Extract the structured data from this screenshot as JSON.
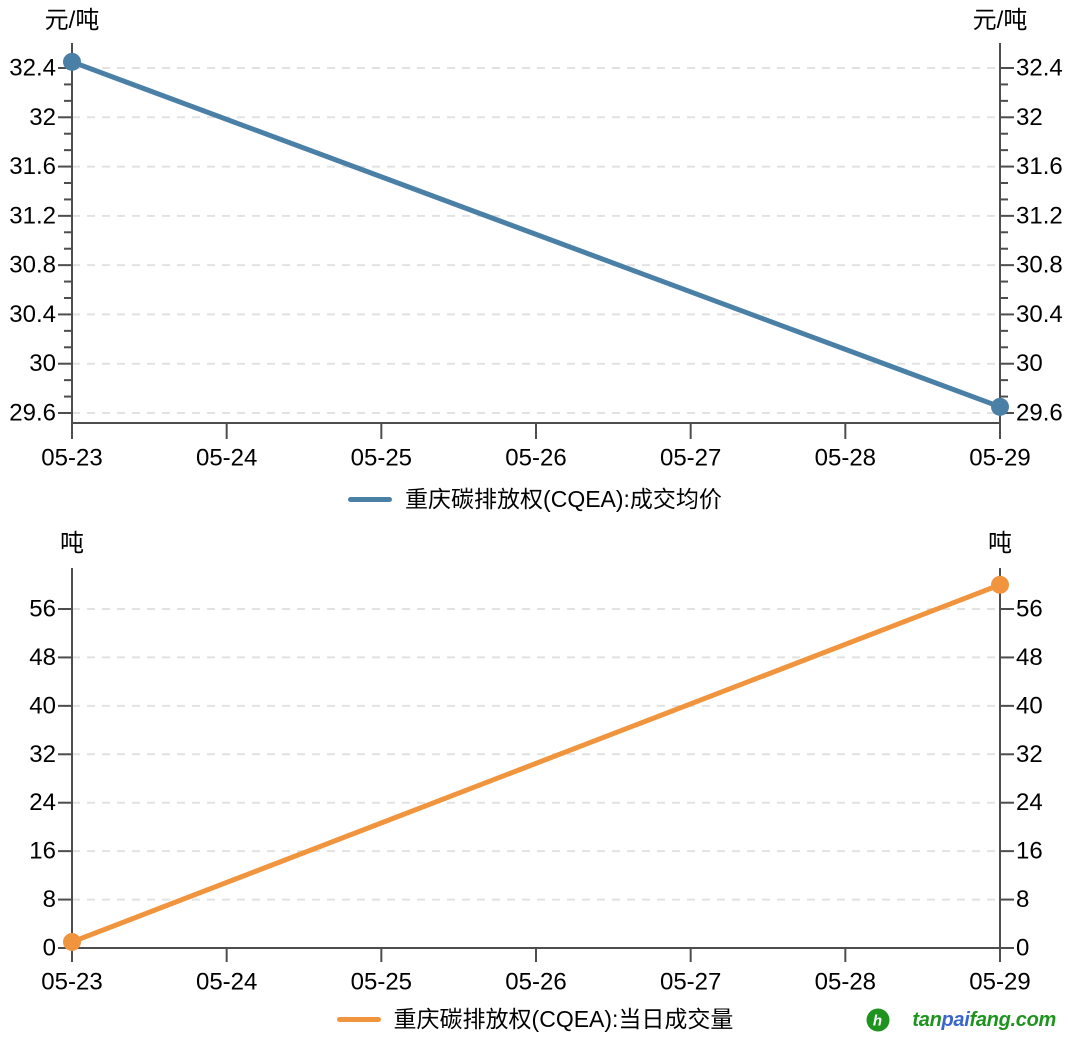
{
  "chart_data": [
    {
      "type": "line",
      "title": "重庆碳排放权(CQEA):成交均价",
      "ylabel": "元/吨",
      "x": [
        "05-23",
        "05-24",
        "05-25",
        "05-26",
        "05-27",
        "05-28",
        "05-29"
      ],
      "series": [
        {
          "name": "重庆碳排放权(CQEA):成交均价",
          "color": "#4A7FA6",
          "values": [
            32.45,
            null,
            null,
            null,
            null,
            null,
            29.65
          ]
        }
      ],
      "ylim": [
        29.6,
        32.4
      ],
      "ytick_labels": [
        "29.6",
        "30",
        "30.4",
        "30.8",
        "31.2",
        "31.6",
        "32",
        "32.4"
      ],
      "minor_ticks_per_interval": 2,
      "grid": true,
      "legend_position": "bottom"
    },
    {
      "type": "line",
      "title": "重庆碳排放权(CQEA):当日成交量",
      "ylabel": "吨",
      "x": [
        "05-23",
        "05-24",
        "05-25",
        "05-26",
        "05-27",
        "05-28",
        "05-29"
      ],
      "series": [
        {
          "name": "重庆碳排放权(CQEA):当日成交量",
          "color": "#F0953E",
          "values": [
            1,
            null,
            null,
            null,
            null,
            null,
            60
          ]
        }
      ],
      "ylim": [
        0,
        56
      ],
      "ytick_labels": [
        "0",
        "8",
        "16",
        "24",
        "32",
        "40",
        "48",
        "56"
      ],
      "minor_ticks_per_interval": 0,
      "grid": true,
      "legend_position": "bottom"
    }
  ],
  "footer": {
    "logo": {
      "part1": "tan",
      "part2": "pai",
      "part3": "fang.com",
      "icon_letter": "h",
      "green": "#1E941E",
      "blue": "#3A66CC"
    }
  },
  "style": {
    "axis_color": "#4D4D4D",
    "grid_color": "#E2E2E2",
    "label_color": "#000000"
  }
}
